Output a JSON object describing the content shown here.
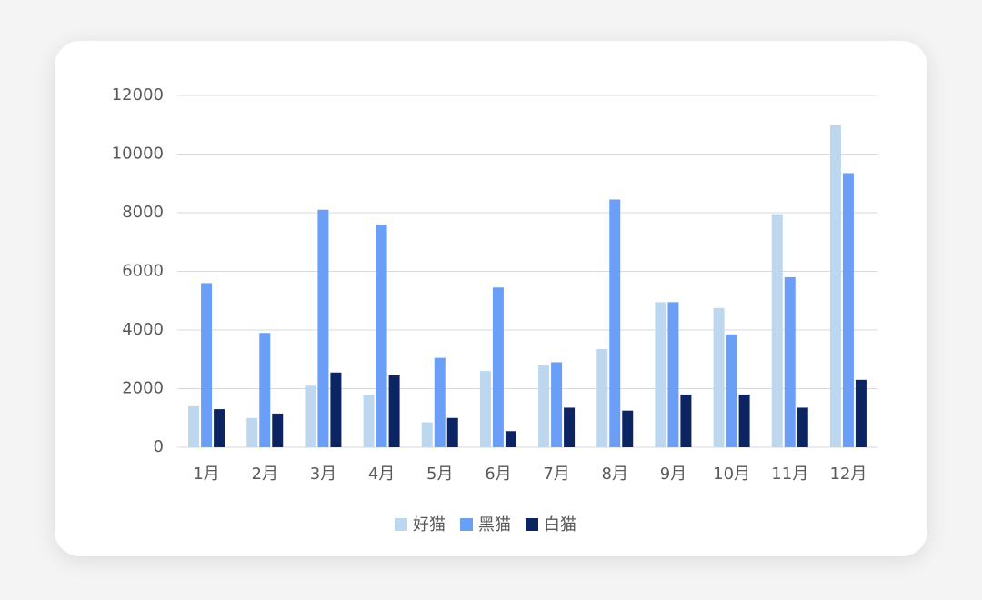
{
  "chart_data": {
    "type": "bar",
    "categories": [
      "1月",
      "2月",
      "3月",
      "4月",
      "5月",
      "6月",
      "7月",
      "8月",
      "9月",
      "10月",
      "11月",
      "12月"
    ],
    "series": [
      {
        "name": "好猫",
        "color": "#bdd7ee",
        "values": [
          1400,
          1000,
          2100,
          1800,
          850,
          2600,
          2800,
          3350,
          4950,
          4750,
          7950,
          11000
        ]
      },
      {
        "name": "黑猫",
        "color": "#6b9ef7",
        "values": [
          5600,
          3900,
          8100,
          7600,
          3050,
          5450,
          2900,
          8450,
          4950,
          3850,
          5800,
          9350
        ]
      },
      {
        "name": "白猫",
        "color": "#0c2461",
        "values": [
          1300,
          1150,
          2550,
          2450,
          1000,
          550,
          1350,
          1250,
          1800,
          1800,
          1350,
          2300
        ]
      }
    ],
    "ylim": [
      0,
      12000
    ],
    "yticks": [
      0,
      2000,
      4000,
      6000,
      8000,
      10000,
      12000
    ],
    "grid": true,
    "legend": "bottom"
  }
}
